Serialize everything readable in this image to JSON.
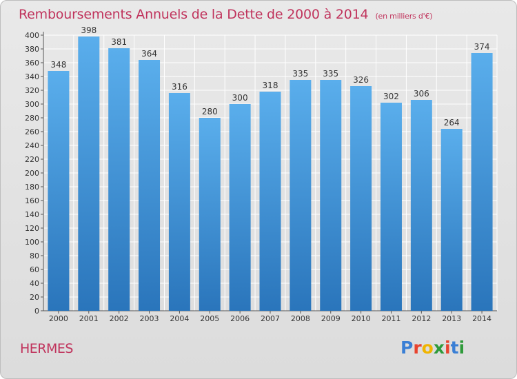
{
  "title": "Remboursements Annuels de la Dette de 2000 à 2014",
  "unit": "(en milliers d'€)",
  "commune": "HERMES",
  "logo": {
    "letters": [
      "P",
      "r",
      "o",
      "x",
      "i",
      "t",
      "i"
    ],
    "colors": [
      "#3a7fd5",
      "#e8432e",
      "#f0b400",
      "#2e9a3a",
      "#e8432e",
      "#3a7fd5",
      "#2e9a3a"
    ]
  },
  "colors": {
    "title": "#c0335c",
    "bar_top": "#5aaeec",
    "bar_bottom": "#2a75bb",
    "grid": "#ffffff"
  },
  "chart_data": {
    "type": "bar",
    "title": "Remboursements Annuels de la Dette de 2000 à 2014",
    "xlabel": "",
    "ylabel": "",
    "categories": [
      "2000",
      "2001",
      "2002",
      "2003",
      "2004",
      "2005",
      "2006",
      "2007",
      "2008",
      "2009",
      "2010",
      "2011",
      "2012",
      "2013",
      "2014"
    ],
    "values": [
      348,
      398,
      381,
      364,
      316,
      280,
      300,
      318,
      335,
      335,
      326,
      302,
      306,
      264,
      374
    ],
    "ylim": [
      0,
      400
    ],
    "yticks": [
      0,
      20,
      40,
      60,
      80,
      100,
      120,
      140,
      160,
      180,
      200,
      220,
      240,
      260,
      280,
      300,
      320,
      340,
      360,
      380,
      400
    ],
    "grid": true
  }
}
